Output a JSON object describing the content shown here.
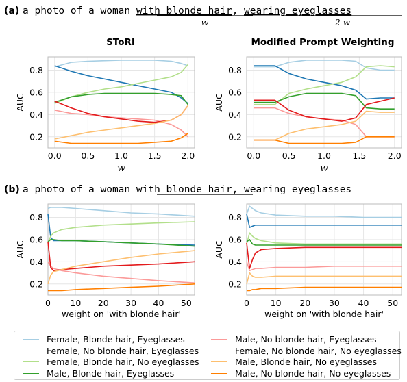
{
  "panel_a": {
    "label": "(a)",
    "prompt_prefix": "a photo of a woman ",
    "phrase_1": "with blonde hair",
    "comma": ",",
    "phrase_2": "wearing eyeglasses",
    "weight_1": "w",
    "weight_2": "2-w"
  },
  "panel_b": {
    "label": "(b)",
    "prompt_prefix": "a photo of a woman ",
    "phrase_1": "with blonde hair",
    "rest": ", wearing eyeglasses"
  },
  "legend": [
    {
      "label": "Female, Blonde hair, Eyeglasses",
      "color": "#a6cee3"
    },
    {
      "label": "Female, No blonde hair, Eyeglasses",
      "color": "#1f78b4"
    },
    {
      "label": "Female, Blonde hair, No eyeglasses",
      "color": "#b2df8a"
    },
    {
      "label": "Male, Blonde hair, Eyeglasses",
      "color": "#33a02c"
    },
    {
      "label": "Male, No blonde hair, Eyeglasses",
      "color": "#fb9a99"
    },
    {
      "label": "Female, No blonde hair, No eyeglasses",
      "color": "#e31a1c"
    },
    {
      "label": "Male, Blonde hair, No eyeglasses",
      "color": "#fdbf6f"
    },
    {
      "label": "Male, No blonde hair, No eyeglasses",
      "color": "#ff7f00"
    }
  ],
  "chart_data": [
    {
      "type": "line",
      "title": "SToRI",
      "xlabel": "w",
      "ylabel": "AUC",
      "xlim": [
        -0.1,
        2.1
      ],
      "ylim": [
        0.1,
        0.92
      ],
      "xticks": [
        0.0,
        0.5,
        1.0,
        1.5,
        2.0
      ],
      "xtick_labels": [
        "0.0",
        "0.5",
        "1.0",
        "1.5",
        "2.0"
      ],
      "yticks": [
        0.2,
        0.4,
        0.6,
        0.8
      ],
      "ytick_labels": [
        "0.2",
        "0.4",
        "0.6",
        "0.8"
      ],
      "grid": true,
      "x": [
        0.0,
        0.25,
        0.5,
        0.75,
        1.0,
        1.25,
        1.5,
        1.75,
        1.9,
        2.0
      ],
      "series": [
        {
          "name": "Female, Blonde hair, Eyeglasses",
          "color": "#a6cee3",
          "values": [
            0.83,
            0.87,
            0.88,
            0.885,
            0.89,
            0.89,
            0.89,
            0.88,
            0.86,
            0.84
          ]
        },
        {
          "name": "Female, No blonde hair, Eyeglasses",
          "color": "#1f78b4",
          "values": [
            0.84,
            0.79,
            0.75,
            0.72,
            0.69,
            0.66,
            0.63,
            0.6,
            0.55,
            0.5
          ]
        },
        {
          "name": "Female, Blonde hair, No eyeglasses",
          "color": "#b2df8a",
          "values": [
            0.5,
            0.56,
            0.6,
            0.63,
            0.65,
            0.68,
            0.71,
            0.74,
            0.78,
            0.85
          ]
        },
        {
          "name": "Male, Blonde hair, Eyeglasses",
          "color": "#33a02c",
          "values": [
            0.51,
            0.56,
            0.58,
            0.59,
            0.59,
            0.59,
            0.59,
            0.58,
            0.57,
            0.49
          ]
        },
        {
          "name": "Male, No blonde hair, Eyeglasses",
          "color": "#fb9a99",
          "values": [
            0.44,
            0.41,
            0.4,
            0.38,
            0.37,
            0.36,
            0.35,
            0.31,
            0.26,
            0.2
          ]
        },
        {
          "name": "Female, No blonde hair, No eyeglasses",
          "color": "#e31a1c",
          "values": [
            0.52,
            0.46,
            0.41,
            0.38,
            0.36,
            0.34,
            0.33,
            0.35,
            0.4,
            0.48
          ]
        },
        {
          "name": "Male, Blonde hair, No eyeglasses",
          "color": "#fdbf6f",
          "values": [
            0.18,
            0.21,
            0.24,
            0.26,
            0.28,
            0.3,
            0.32,
            0.35,
            0.4,
            0.48
          ]
        },
        {
          "name": "Male, No blonde hair, No eyeglasses",
          "color": "#ff7f00",
          "values": [
            0.16,
            0.14,
            0.14,
            0.14,
            0.14,
            0.14,
            0.15,
            0.16,
            0.19,
            0.23
          ]
        }
      ]
    },
    {
      "type": "line",
      "title": "Modified Prompt Weighting",
      "xlabel": "w",
      "ylabel": "AUC",
      "xlim": [
        -0.1,
        2.1
      ],
      "ylim": [
        0.1,
        0.92
      ],
      "xticks": [
        0.0,
        0.5,
        1.0,
        1.5,
        2.0
      ],
      "xtick_labels": [
        "0.0",
        "0.5",
        "1.0",
        "1.5",
        "2.0"
      ],
      "yticks": [
        0.2,
        0.4,
        0.6,
        0.8
      ],
      "ytick_labels": [
        "0.2",
        "0.4",
        "0.6",
        "0.8"
      ],
      "grid": true,
      "x": [
        0.0,
        0.3,
        0.5,
        0.75,
        1.0,
        1.25,
        1.45,
        1.6,
        1.8,
        2.0
      ],
      "series": [
        {
          "name": "Female, Blonde hair, Eyeglasses",
          "color": "#a6cee3",
          "values": [
            0.83,
            0.83,
            0.87,
            0.89,
            0.89,
            0.89,
            0.88,
            0.82,
            0.8,
            0.8
          ]
        },
        {
          "name": "Female, No blonde hair, Eyeglasses",
          "color": "#1f78b4",
          "values": [
            0.84,
            0.84,
            0.77,
            0.72,
            0.69,
            0.66,
            0.62,
            0.54,
            0.55,
            0.55
          ]
        },
        {
          "name": "Female, Blonde hair, No eyeglasses",
          "color": "#b2df8a",
          "values": [
            0.49,
            0.49,
            0.59,
            0.63,
            0.66,
            0.69,
            0.74,
            0.83,
            0.84,
            0.83
          ]
        },
        {
          "name": "Male, Blonde hair, Eyeglasses",
          "color": "#33a02c",
          "values": [
            0.51,
            0.51,
            0.56,
            0.59,
            0.59,
            0.59,
            0.57,
            0.46,
            0.45,
            0.45
          ]
        },
        {
          "name": "Male, No blonde hair, Eyeglasses",
          "color": "#fb9a99",
          "values": [
            0.46,
            0.46,
            0.41,
            0.38,
            0.36,
            0.35,
            0.31,
            0.2,
            0.2,
            0.2
          ]
        },
        {
          "name": "Female, No blonde hair, No eyeglasses",
          "color": "#e31a1c",
          "values": [
            0.53,
            0.53,
            0.44,
            0.38,
            0.36,
            0.34,
            0.37,
            0.49,
            0.52,
            0.55
          ]
        },
        {
          "name": "Male, Blonde hair, No eyeglasses",
          "color": "#fdbf6f",
          "values": [
            0.17,
            0.17,
            0.23,
            0.27,
            0.29,
            0.31,
            0.34,
            0.43,
            0.42,
            0.42
          ]
        },
        {
          "name": "Male, No blonde hair, No eyeglasses",
          "color": "#ff7f00",
          "values": [
            0.17,
            0.17,
            0.14,
            0.14,
            0.14,
            0.14,
            0.15,
            0.2,
            0.2,
            0.2
          ]
        }
      ]
    },
    {
      "type": "line",
      "title": "",
      "xlabel": "weight on 'with blonde hair'",
      "ylabel": "AUC",
      "xlim": [
        0,
        53
      ],
      "ylim": [
        0.1,
        0.92
      ],
      "xticks": [
        0,
        10,
        20,
        30,
        40,
        50
      ],
      "xtick_labels": [
        "0",
        "10",
        "20",
        "30",
        "40",
        "50"
      ],
      "yticks": [
        0.2,
        0.4,
        0.6,
        0.8
      ],
      "ytick_labels": [
        "0.2",
        "0.4",
        "0.6",
        "0.8"
      ],
      "grid": true,
      "x": [
        0,
        1,
        2,
        5,
        10,
        20,
        30,
        40,
        53
      ],
      "series": [
        {
          "name": "Female, Blonde hair, Eyeglasses",
          "color": "#a6cee3",
          "values": [
            0.88,
            0.89,
            0.89,
            0.89,
            0.88,
            0.86,
            0.84,
            0.83,
            0.81
          ]
        },
        {
          "name": "Female, No blonde hair, Eyeglasses",
          "color": "#1f78b4",
          "values": [
            0.83,
            0.62,
            0.59,
            0.59,
            0.59,
            0.58,
            0.57,
            0.56,
            0.55
          ]
        },
        {
          "name": "Female, Blonde hair, No eyeglasses",
          "color": "#b2df8a",
          "values": [
            0.57,
            0.63,
            0.66,
            0.69,
            0.71,
            0.73,
            0.74,
            0.75,
            0.76
          ]
        },
        {
          "name": "Male, Blonde hair, Eyeglasses",
          "color": "#33a02c",
          "values": [
            0.58,
            0.6,
            0.6,
            0.59,
            0.59,
            0.58,
            0.57,
            0.56,
            0.54
          ]
        },
        {
          "name": "Male, No blonde hair, Eyeglasses",
          "color": "#fb9a99",
          "values": [
            0.4,
            0.36,
            0.34,
            0.32,
            0.3,
            0.27,
            0.25,
            0.23,
            0.21
          ]
        },
        {
          "name": "Female, No blonde hair, No eyeglasses",
          "color": "#e31a1c",
          "values": [
            0.58,
            0.35,
            0.32,
            0.33,
            0.34,
            0.36,
            0.37,
            0.38,
            0.4
          ]
        },
        {
          "name": "Male, Blonde hair, No eyeglasses",
          "color": "#fdbf6f",
          "values": [
            0.2,
            0.28,
            0.31,
            0.33,
            0.36,
            0.4,
            0.44,
            0.47,
            0.5
          ]
        },
        {
          "name": "Male, No blonde hair, No eyeglasses",
          "color": "#ff7f00",
          "values": [
            0.14,
            0.14,
            0.14,
            0.14,
            0.15,
            0.16,
            0.17,
            0.18,
            0.2
          ]
        }
      ]
    },
    {
      "type": "line",
      "title": "",
      "xlabel": "weight on 'with blonde hair'",
      "ylabel": "AUC",
      "xlim": [
        0,
        53
      ],
      "ylim": [
        0.1,
        0.92
      ],
      "xticks": [
        0,
        10,
        20,
        30,
        40,
        50
      ],
      "xtick_labels": [
        "0",
        "10",
        "20",
        "30",
        "40",
        "50"
      ],
      "yticks": [
        0.2,
        0.4,
        0.6,
        0.8
      ],
      "ytick_labels": [
        "0.2",
        "0.4",
        "0.6",
        "0.8"
      ],
      "grid": true,
      "x": [
        0,
        1,
        2,
        3,
        5,
        10,
        20,
        30,
        40,
        53
      ],
      "series": [
        {
          "name": "Female, Blonde hair, Eyeglasses",
          "color": "#a6cee3",
          "values": [
            0.83,
            0.9,
            0.88,
            0.86,
            0.84,
            0.82,
            0.81,
            0.81,
            0.8,
            0.8
          ]
        },
        {
          "name": "Female, No blonde hair, Eyeglasses",
          "color": "#1f78b4",
          "values": [
            0.83,
            0.71,
            0.72,
            0.73,
            0.73,
            0.73,
            0.73,
            0.73,
            0.73,
            0.73
          ]
        },
        {
          "name": "Female, Blonde hair, No eyeglasses",
          "color": "#b2df8a",
          "values": [
            0.56,
            0.66,
            0.63,
            0.61,
            0.59,
            0.57,
            0.56,
            0.56,
            0.56,
            0.56
          ]
        },
        {
          "name": "Male, Blonde hair, Eyeglasses",
          "color": "#33a02c",
          "values": [
            0.58,
            0.6,
            0.56,
            0.55,
            0.55,
            0.55,
            0.55,
            0.55,
            0.55,
            0.55
          ]
        },
        {
          "name": "Male, No blonde hair, Eyeglasses",
          "color": "#fb9a99",
          "values": [
            0.4,
            0.32,
            0.33,
            0.34,
            0.34,
            0.35,
            0.35,
            0.36,
            0.36,
            0.36
          ]
        },
        {
          "name": "Female, No blonde hair, No eyeglasses",
          "color": "#e31a1c",
          "values": [
            0.57,
            0.34,
            0.42,
            0.48,
            0.51,
            0.52,
            0.53,
            0.53,
            0.53,
            0.53
          ]
        },
        {
          "name": "Male, Blonde hair, No eyeglasses",
          "color": "#fdbf6f",
          "values": [
            0.2,
            0.3,
            0.27,
            0.26,
            0.26,
            0.27,
            0.27,
            0.27,
            0.27,
            0.27
          ]
        },
        {
          "name": "Male, No blonde hair, No eyeglasses",
          "color": "#ff7f00",
          "values": [
            0.14,
            0.14,
            0.15,
            0.15,
            0.16,
            0.16,
            0.17,
            0.17,
            0.17,
            0.17
          ]
        }
      ]
    }
  ]
}
